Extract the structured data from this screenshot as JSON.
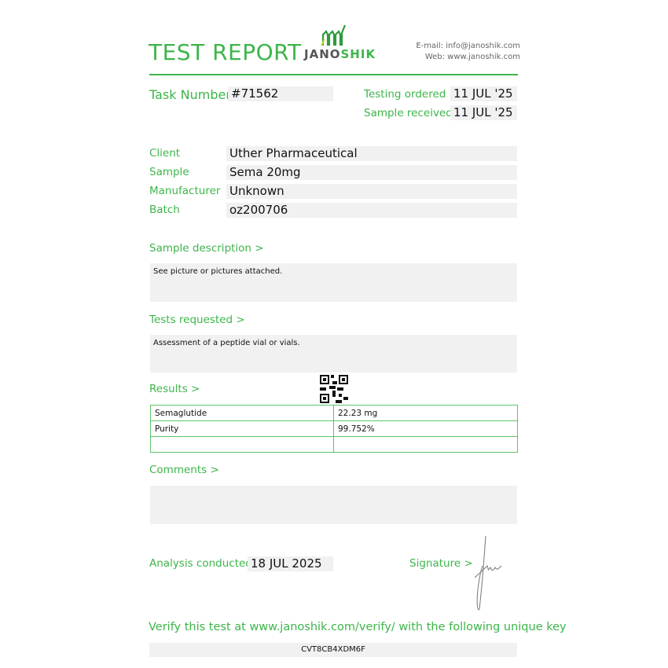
{
  "header": {
    "title": "TEST REPORT",
    "logo": {
      "text_dark": "JANO",
      "text_green": "SHIK"
    },
    "email": "E-mail: info@janoshik.com",
    "web": "Web: www.janoshik.com"
  },
  "task": {
    "label": "Task Number",
    "value": "#71562",
    "testing_ordered_label": "Testing ordered  >",
    "testing_ordered": "11 JUL '25",
    "sample_received_label": "Sample received >",
    "sample_received": "11 JUL '25"
  },
  "info": [
    {
      "label": "Client",
      "value": "Uther Pharmaceutical"
    },
    {
      "label": "Sample",
      "value": "Sema 20mg"
    },
    {
      "label": "Manufacturer",
      "value": "Unknown"
    },
    {
      "label": "Batch",
      "value": "oz200706"
    }
  ],
  "sample_description": {
    "label": "Sample description >",
    "text": "See picture or pictures attached."
  },
  "tests_requested": {
    "label": "Tests requested >",
    "text": "Assessment of a peptide vial or vials."
  },
  "results": {
    "label": "Results >",
    "rows": [
      [
        "Semaglutide",
        "22.23 mg"
      ],
      [
        "Purity",
        "99.752%"
      ],
      [
        "",
        ""
      ]
    ]
  },
  "comments": {
    "label": "Comments >",
    "text": ""
  },
  "analysis": {
    "label": "Analysis conducted >",
    "value": "18 JUL 2025"
  },
  "signature": {
    "label": "Signature >"
  },
  "verify": {
    "text": "Verify this test at www.janoshik.com/verify/ with the following unique key",
    "key": "CVT8CB4XDM6F"
  },
  "colors": {
    "accent": "#3db54a",
    "field_bg": "#f1f1f1"
  }
}
